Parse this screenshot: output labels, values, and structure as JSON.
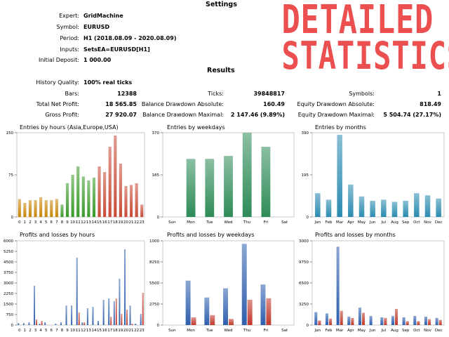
{
  "settings": {
    "heading": "Settings",
    "rows": [
      {
        "label": "Expert:",
        "value": "GridMachine"
      },
      {
        "label": "Symbol:",
        "value": "EURUSD"
      },
      {
        "label": "Period:",
        "value": "H1 (2018.08.09 - 2020.08.09)"
      },
      {
        "label": "Inputs:",
        "value": "SetsEA=EURUSD[H1]"
      },
      {
        "label": "Initial Deposit:",
        "value": "1 000.00"
      }
    ]
  },
  "banner": {
    "line1": "DETAILED",
    "line2": "STATISTICS",
    "color": "#ec4f4f"
  },
  "results": {
    "heading": "Results",
    "history_quality": {
      "label": "History Quality:",
      "value": "100% real ticks"
    },
    "col1": [
      {
        "label": "Bars:",
        "value": "12388"
      },
      {
        "label": "Total Net Profit:",
        "value": "18 565.85"
      },
      {
        "label": "Gross Profit:",
        "value": "27 920.07"
      }
    ],
    "col2": [
      {
        "label": "Ticks:",
        "value": "39848817"
      },
      {
        "label": "Balance Drawdown Absolute:",
        "value": "160.49"
      },
      {
        "label": "Balance Drawdown Maximal:",
        "value": "2 147.46 (9.89%)"
      }
    ],
    "col3": [
      {
        "label": "Symbols:",
        "value": "1"
      },
      {
        "label": "Equity Drawdown Absolute:",
        "value": "818.49"
      },
      {
        "label": "Equity Drawdown Maximal:",
        "value": "5 504.74 (27.17%)"
      }
    ]
  },
  "chart_data": [
    {
      "type": "bar",
      "title": "Entries by hours (Asia,Europe,USA)",
      "categories": [
        "0",
        "1",
        "2",
        "3",
        "4",
        "5",
        "6",
        "7",
        "8",
        "9",
        "10",
        "11",
        "12",
        "13",
        "14",
        "15",
        "16",
        "17",
        "18",
        "19",
        "20",
        "21",
        "22",
        "23"
      ],
      "values": [
        32,
        25,
        30,
        30,
        35,
        30,
        30,
        32,
        22,
        60,
        75,
        90,
        72,
        65,
        70,
        90,
        80,
        125,
        145,
        95,
        55,
        57,
        60,
        22
      ],
      "yticks": [
        0,
        75,
        150
      ],
      "ylim": [
        0,
        150
      ],
      "session_colors": [
        "#c8860a",
        "#c8860a",
        "#c8860a",
        "#c8860a",
        "#c8860a",
        "#c8860a",
        "#c8860a",
        "#c8860a",
        "#3a9a2a",
        "#3a9a2a",
        "#3a9a2a",
        "#3a9a2a",
        "#3a9a2a",
        "#3a9a2a",
        "#3a9a2a",
        "#c84a36",
        "#c84a36",
        "#c84a36",
        "#c84a36",
        "#c84a36",
        "#c84a36",
        "#c84a36",
        "#c84a36",
        "#c84a36"
      ]
    },
    {
      "type": "bar",
      "title": "Entries by weekdays",
      "categories": [
        "Sun",
        "Mon",
        "Tue",
        "Wed",
        "Thu",
        "Fri",
        "Sat"
      ],
      "values": [
        0,
        255,
        255,
        268,
        370,
        308,
        0
      ],
      "yticks": [
        0,
        185,
        370
      ],
      "ylim": [
        0,
        370
      ],
      "color": "#2e8b57"
    },
    {
      "type": "bar",
      "title": "Entries by months",
      "categories": [
        "Jan",
        "Feb",
        "Mar",
        "Apr",
        "May",
        "Jun",
        "Jul",
        "Aug",
        "Sep",
        "Oct",
        "Nov",
        "Dec"
      ],
      "values": [
        110,
        80,
        380,
        150,
        95,
        75,
        80,
        70,
        75,
        110,
        100,
        85
      ],
      "yticks": [
        0,
        195,
        390
      ],
      "ylim": [
        0,
        390
      ],
      "color": "#2a8bb0"
    },
    {
      "type": "bar",
      "title": "Profits and losses by hours",
      "categories": [
        "0",
        "1",
        "2",
        "3",
        "4",
        "5",
        "6",
        "7",
        "8",
        "9",
        "10",
        "11",
        "12",
        "13",
        "14",
        "15",
        "16",
        "17",
        "18",
        "19",
        "20",
        "21",
        "22",
        "23"
      ],
      "series": [
        {
          "values": [
            150,
            150,
            200,
            2800,
            100,
            200,
            0,
            100,
            200,
            1400,
            1400,
            4800,
            200,
            1200,
            1300,
            300,
            1800,
            1900,
            1700,
            3300,
            5400,
            1400,
            100,
            800
          ]
        },
        {
          "values": [
            0,
            0,
            0,
            400,
            300,
            0,
            0,
            0,
            0,
            0,
            0,
            900,
            200,
            0,
            0,
            0,
            0,
            600,
            1900,
            800,
            1100,
            100,
            0,
            2300
          ]
        }
      ],
      "yticks": [
        0,
        750,
        1500,
        2250,
        3000,
        3750,
        4500,
        5250,
        6000
      ],
      "ylim": [
        0,
        6000
      ],
      "colors": [
        "#2e5fae",
        "#c0392b"
      ]
    },
    {
      "type": "bar",
      "title": "Profits and losses by weekdays",
      "categories": [
        "Sun",
        "Mon",
        "Tue",
        "Wed",
        "Thu",
        "Fri",
        "Sat"
      ],
      "series": [
        {
          "values": [
            0,
            5800,
            3600,
            4800,
            10600,
            5300,
            0
          ]
        },
        {
          "values": [
            0,
            1000,
            1300,
            800,
            3300,
            3500,
            0
          ]
        }
      ],
      "yticks": [
        0,
        2750,
        5500,
        8250,
        11000
      ],
      "ylim": [
        0,
        11000
      ],
      "colors": [
        "#2e5fae",
        "#c0392b"
      ]
    },
    {
      "type": "bar",
      "title": "Profits and losses by months",
      "categories": [
        "Jan",
        "Feb",
        "Mar",
        "Apr",
        "May",
        "Jun",
        "Jul",
        "Aug",
        "Sep",
        "Oct",
        "Nov",
        "Dec"
      ],
      "series": [
        {
          "values": [
            2000,
            1800,
            12100,
            1300,
            2700,
            1400,
            1200,
            1400,
            1200,
            1400,
            1300,
            1100
          ]
        },
        {
          "values": [
            700,
            1000,
            2200,
            1100,
            1900,
            0,
            1100,
            2500,
            600,
            600,
            900,
            800
          ]
        }
      ],
      "yticks": [
        0,
        3250,
        6500,
        9750,
        13000
      ],
      "ylim": [
        0,
        13000
      ],
      "colors": [
        "#2e5fae",
        "#c0392b"
      ]
    }
  ]
}
